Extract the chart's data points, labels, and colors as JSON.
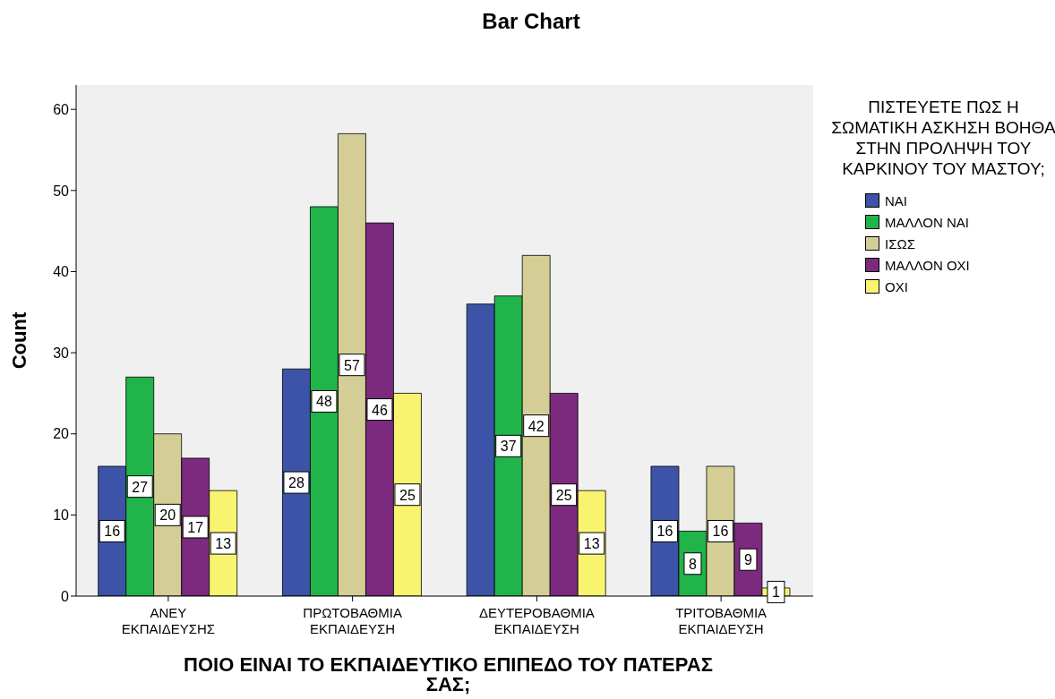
{
  "chart_data": {
    "type": "bar",
    "title": "Bar Chart",
    "xlabel": "ΠΟΙΟ ΕΙΝΑΙ ΤΟ ΕΚΠΑΙΔΕΥΤΙΚΟ ΕΠΙΠΕΔΟ ΤΟΥ ΠΑΤΕΡΑΣ ΣΑΣ;",
    "ylabel": "Count",
    "legend_title": "ΠΙΣΤΕΥΕΤΕ ΠΩΣ Η ΣΩΜΑΤΙΚΗ ΑΣΚΗΣΗ ΒΟΗΘΑ ΣΤΗΝ ΠΡΟΛΗΨΗ ΤΟΥ ΚΑΡΚΙΝΟΥ ΤΟΥ ΜΑΣΤΟΥ;",
    "categories": [
      "ΑΝΕΥ ΕΚΠΑΙΔΕΥΣΗΣ",
      "ΠΡΩΤΟΒΑΘΜΙΑ ΕΚΠΑΙΔΕΥΣΗ",
      "ΔΕΥΤΕΡΟΒΑΘΜΙΑ ΕΚΠΑΙΔΕΥΣΗ",
      "ΤΡΙΤΟΒΑΘΜΙΑ ΕΚΠΑΙΔΕΥΣΗ"
    ],
    "series": [
      {
        "name": "ΝΑΙ",
        "color": "#3d53a8",
        "values": [
          16,
          28,
          36,
          16
        ],
        "value_labels": [
          "16",
          "28",
          null,
          "16"
        ]
      },
      {
        "name": "ΜΑΛΛΟΝ ΝΑΙ",
        "color": "#21b44a",
        "values": [
          27,
          48,
          37,
          8
        ],
        "value_labels": [
          "27",
          "48",
          "37",
          "8"
        ]
      },
      {
        "name": "ΙΣΩΣ",
        "color": "#d4ce96",
        "values": [
          20,
          57,
          42,
          16
        ],
        "value_labels": [
          "20",
          "57",
          "42",
          "16"
        ]
      },
      {
        "name": "ΜΑΛΛΟΝ ΟΧΙ",
        "color": "#7b2a7e",
        "values": [
          17,
          46,
          25,
          9
        ],
        "value_labels": [
          "17",
          "46",
          "25",
          "9"
        ]
      },
      {
        "name": "ΟΧΙ",
        "color": "#f8f46f",
        "values": [
          13,
          25,
          13,
          1
        ],
        "value_labels": [
          "13",
          "25",
          "13",
          "1"
        ]
      }
    ],
    "ylim": [
      0,
      63
    ],
    "yticks": [
      0,
      10,
      20,
      30,
      40,
      50,
      60
    ],
    "grid": false,
    "legend": "right"
  }
}
